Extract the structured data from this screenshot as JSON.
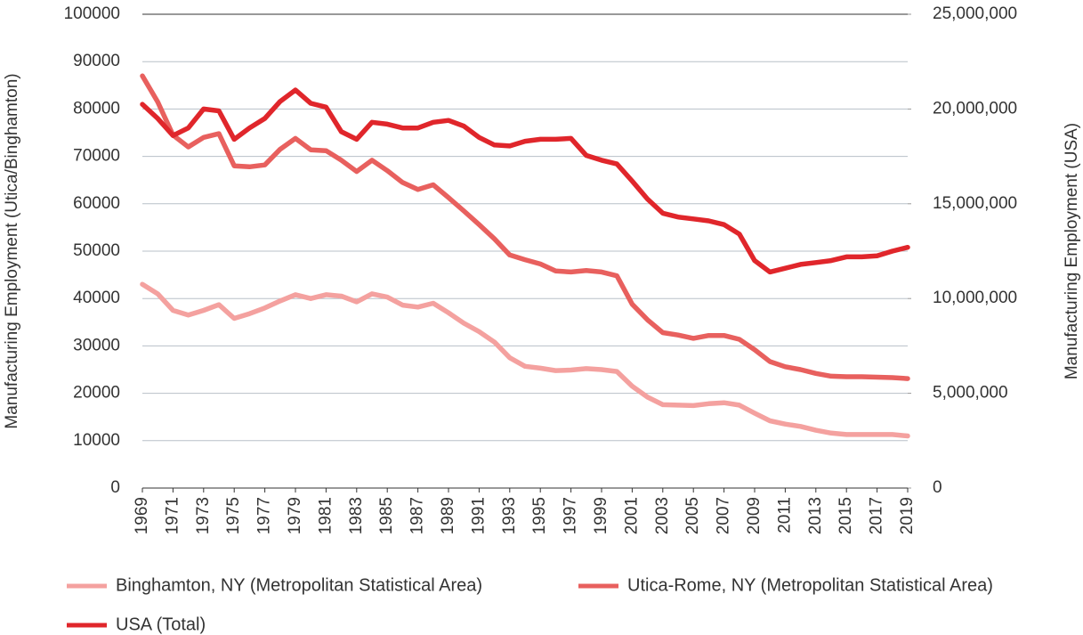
{
  "chart_data": {
    "type": "line",
    "y_label": "Manufacturing Employment (Utica/Binghamton)",
    "y2_label": "Manufacturing Employment (USA)",
    "x": [
      1969,
      1970,
      1971,
      1972,
      1973,
      1974,
      1975,
      1976,
      1977,
      1978,
      1979,
      1980,
      1981,
      1982,
      1983,
      1984,
      1985,
      1986,
      1987,
      1988,
      1989,
      1990,
      1991,
      1992,
      1993,
      1994,
      1995,
      1996,
      1997,
      1998,
      1999,
      2000,
      2001,
      2002,
      2003,
      2004,
      2005,
      2006,
      2007,
      2008,
      2009,
      2010,
      2011,
      2012,
      2013,
      2014,
      2015,
      2016,
      2017,
      2018,
      2019
    ],
    "xlim": [
      1969,
      2019
    ],
    "xticks": [
      1969,
      1971,
      1973,
      1975,
      1977,
      1979,
      1981,
      1983,
      1985,
      1987,
      1989,
      1991,
      1993,
      1995,
      1997,
      1999,
      2001,
      2003,
      2005,
      2007,
      2009,
      2011,
      2013,
      2015,
      2017,
      2019
    ],
    "ylim": [
      0,
      100000
    ],
    "yticks": [
      0,
      10000,
      20000,
      30000,
      40000,
      50000,
      60000,
      70000,
      80000,
      90000,
      100000
    ],
    "y2lim": [
      0,
      25000000
    ],
    "y2ticks": [
      0,
      {
        "value": 5000000,
        "label": "5,000,000"
      },
      {
        "value": 10000000,
        "label": "10,000,000"
      },
      {
        "value": 15000000,
        "label": "15,000,000"
      },
      {
        "value": 20000000,
        "label": "20,000,000"
      },
      {
        "value": 25000000,
        "label": "25,000,000"
      }
    ],
    "grid": true,
    "legend": "bottom",
    "series": [
      {
        "name": "Binghamton, NY (Metropolitan Statistical Area)",
        "color": "#f4a19f",
        "values": [
          43000,
          41000,
          37500,
          36500,
          37500,
          38700,
          35800,
          36800,
          38000,
          39500,
          40800,
          40000,
          40800,
          40500,
          39300,
          41000,
          40300,
          38600,
          38200,
          39000,
          37000,
          34800,
          33000,
          30800,
          27500,
          25700,
          25300,
          24800,
          24900,
          25200,
          25000,
          24600,
          21500,
          19200,
          17600,
          17500,
          17400,
          17800,
          18000,
          17500,
          15800,
          14200,
          13500,
          13000,
          12200,
          11600,
          11300,
          11300,
          11300,
          11300,
          11000
        ]
      },
      {
        "name": "Utica-Rome, NY (Metropolitan Statistical Area)",
        "color": "#e8605e",
        "values": [
          87000,
          81500,
          74500,
          72000,
          74000,
          74800,
          68000,
          67800,
          68200,
          71500,
          73800,
          71400,
          71200,
          69200,
          66800,
          69200,
          67000,
          64500,
          63000,
          64000,
          61300,
          58500,
          55600,
          52600,
          49200,
          48200,
          47300,
          45800,
          45600,
          45900,
          45600,
          44800,
          38800,
          35500,
          32800,
          32300,
          31600,
          32200,
          32200,
          31400,
          29200,
          26700,
          25600,
          25000,
          24200,
          23600,
          23500,
          23500,
          23400,
          23300,
          23100
        ]
      },
      {
        "name": "USA (Total)",
        "color": "#e0262b",
        "axis": "y2",
        "values": [
          20250000,
          19500000,
          18600000,
          19000000,
          20000000,
          19900000,
          18400000,
          19000000,
          19500000,
          20400000,
          21000000,
          20300000,
          20100000,
          18800000,
          18400000,
          19300000,
          19200000,
          19000000,
          19000000,
          19300000,
          19400000,
          19100000,
          18500000,
          18100000,
          18050000,
          18300000,
          18400000,
          18400000,
          18450000,
          17550000,
          17300000,
          17100000,
          16200000,
          15250000,
          14500000,
          14300000,
          14200000,
          14100000,
          13900000,
          13400000,
          12000000,
          11400000,
          11600000,
          11800000,
          11900000,
          12000000,
          12200000,
          12200000,
          12250000,
          12500000,
          12700000
        ]
      }
    ]
  }
}
